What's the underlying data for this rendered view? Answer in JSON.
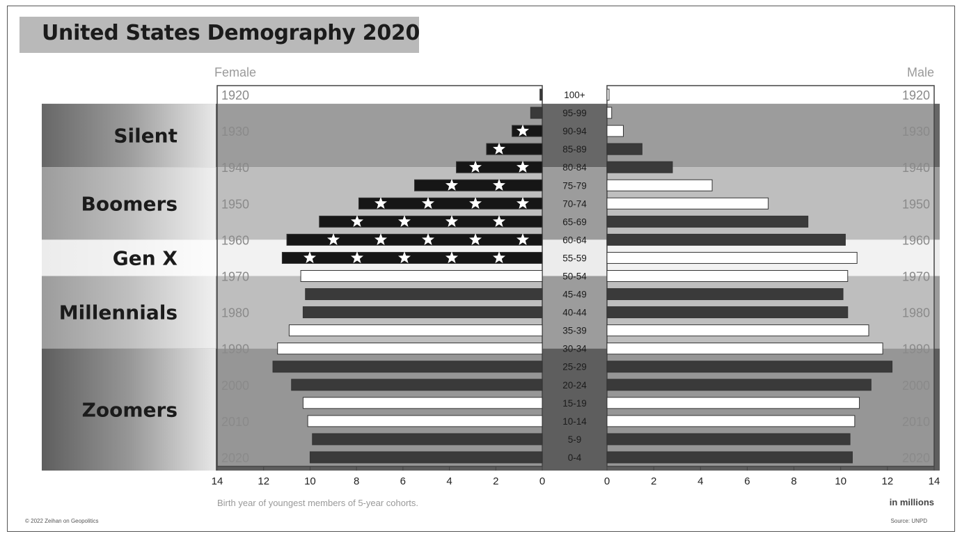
{
  "title": "United States Demography 2020",
  "female_label": "Female",
  "male_label": "Male",
  "axis_note": "Birth year of youngest members of 5-year cohorts.",
  "unit_label": "in millions",
  "credit": "© 2022 Zeihan on Geopolitics",
  "source": "Source: UNPD",
  "colors": {
    "dark": "#3a3a3a",
    "flag": "#161616",
    "white_bar": "#ffffff",
    "band_edge": "#d8d8d8"
  },
  "generations": [
    {
      "name": "Silent",
      "tone": "#676767"
    },
    {
      "name": "Boomers",
      "tone": "#9c9c9c"
    },
    {
      "name": "Gen X",
      "tone": "#ececec"
    },
    {
      "name": "Millennials",
      "tone": "#9c9c9c"
    },
    {
      "name": "Zoomers",
      "tone": "#5e5e5e"
    }
  ],
  "chart_data": {
    "type": "bar",
    "title": "United States Demography 2020",
    "categories": [
      "100+",
      "95-99",
      "90-94",
      "85-89",
      "80-84",
      "75-79",
      "70-74",
      "65-69",
      "60-64",
      "55-59",
      "50-54",
      "45-49",
      "40-44",
      "35-39",
      "30-34",
      "25-29",
      "20-24",
      "15-19",
      "10-14",
      "5-9",
      "0-4"
    ],
    "series": [
      {
        "name": "Female",
        "values": [
          0.1,
          0.5,
          1.3,
          2.4,
          3.7,
          5.5,
          7.9,
          9.6,
          11.0,
          11.2,
          10.4,
          10.2,
          10.3,
          10.9,
          11.4,
          11.6,
          10.8,
          10.3,
          10.1,
          9.9,
          10.0
        ]
      },
      {
        "name": "Male",
        "values": [
          0.05,
          0.2,
          0.7,
          1.5,
          2.8,
          4.5,
          6.9,
          8.6,
          10.2,
          10.7,
          10.3,
          10.1,
          10.3,
          11.2,
          11.8,
          12.2,
          11.3,
          10.8,
          10.6,
          10.4,
          10.5
        ]
      }
    ],
    "styles": [
      "dark",
      "dark",
      "flag",
      "flag",
      "flag",
      "flag",
      "flag",
      "flag",
      "flag",
      "flag",
      "white",
      "dark",
      "dark",
      "white",
      "white",
      "dark",
      "dark",
      "white",
      "white",
      "dark",
      "dark"
    ],
    "male_styles": [
      "white",
      "white",
      "white",
      "dark",
      "dark",
      "white",
      "white",
      "dark",
      "dark",
      "white",
      "white",
      "dark",
      "dark",
      "white",
      "white",
      "dark",
      "dark",
      "white",
      "white",
      "dark",
      "dark"
    ],
    "birth_years": [
      "1920",
      "1930",
      "1940",
      "1950",
      "1960",
      "1970",
      "1980",
      "1990",
      "2000",
      "2010",
      "2020"
    ],
    "x_ticks": [
      "14",
      "12",
      "10",
      "8",
      "6",
      "4",
      "2",
      "0"
    ],
    "x_ticks_male": [
      "0",
      "2",
      "4",
      "6",
      "8",
      "10",
      "12",
      "14"
    ],
    "xlim": [
      0,
      14
    ]
  }
}
